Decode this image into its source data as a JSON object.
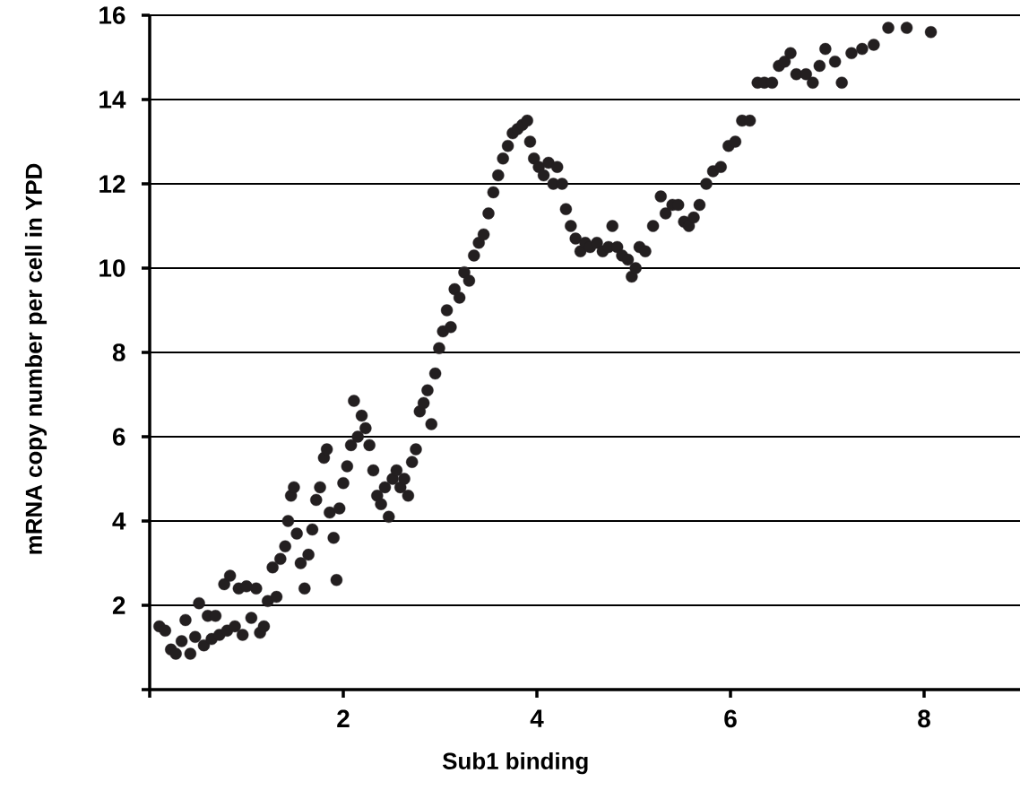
{
  "chart_data": {
    "type": "scatter",
    "xlabel": "Sub1 binding",
    "ylabel": "mRNA copy number per cell in YPD",
    "xlim": [
      0,
      9
    ],
    "ylim": [
      0,
      16
    ],
    "xticks": [
      {
        "value": 0,
        "label": null
      },
      2,
      4,
      6,
      8
    ],
    "yticks": [
      {
        "value": 0,
        "label": null
      },
      2,
      4,
      6,
      8,
      10,
      12,
      14,
      16
    ],
    "grid": "y",
    "series": [
      {
        "color": "#231f20",
        "x": [
          0.1,
          0.16,
          0.22,
          0.27,
          0.33,
          0.37,
          0.42,
          0.47,
          0.51,
          0.56,
          0.6,
          0.64,
          0.68,
          0.72,
          0.77,
          0.8,
          0.83,
          0.88,
          0.92,
          0.96,
          1.0,
          1.05,
          1.1,
          1.14,
          1.18,
          1.22,
          1.27,
          1.31,
          1.35,
          1.4,
          1.43,
          1.46,
          1.49,
          1.52,
          1.56,
          1.6,
          1.64,
          1.68,
          1.72,
          1.76,
          1.8,
          1.83,
          1.86,
          1.9,
          1.93,
          1.96,
          2.0,
          2.04,
          2.08,
          2.11,
          2.15,
          2.19,
          2.23,
          2.27,
          2.31,
          2.35,
          2.39,
          2.43,
          2.47,
          2.51,
          2.55,
          2.59,
          2.63,
          2.67,
          2.71,
          2.75,
          2.79,
          2.83,
          2.87,
          2.91,
          2.95,
          2.99,
          3.03,
          3.07,
          3.11,
          3.15,
          3.2,
          3.25,
          3.3,
          3.35,
          3.4,
          3.45,
          3.5,
          3.55,
          3.6,
          3.65,
          3.7,
          3.75,
          3.8,
          3.85,
          3.9,
          3.93,
          3.97,
          4.02,
          4.07,
          4.12,
          4.17,
          4.21,
          4.26,
          4.3,
          4.35,
          4.4,
          4.45,
          4.5,
          4.55,
          4.62,
          4.68,
          4.74,
          4.78,
          4.83,
          4.88,
          4.94,
          4.98,
          5.02,
          5.06,
          5.12,
          5.2,
          5.28,
          5.33,
          5.4,
          5.46,
          5.52,
          5.57,
          5.62,
          5.68,
          5.75,
          5.82,
          5.9,
          5.98,
          6.05,
          6.12,
          6.2,
          6.28,
          6.35,
          6.43,
          6.5,
          6.56,
          6.62,
          6.68,
          6.78,
          6.85,
          6.92,
          6.98,
          7.08,
          7.15,
          7.25,
          7.36,
          7.48,
          7.63,
          7.82,
          8.07
        ],
        "values": [
          1.5,
          1.4,
          0.95,
          0.85,
          1.15,
          1.65,
          0.85,
          1.25,
          2.05,
          1.05,
          1.75,
          1.2,
          1.75,
          1.3,
          2.5,
          1.4,
          2.7,
          1.5,
          2.4,
          1.3,
          2.45,
          1.7,
          2.4,
          1.35,
          1.5,
          2.1,
          2.9,
          2.2,
          3.1,
          3.4,
          4.0,
          4.6,
          4.8,
          3.7,
          3.0,
          2.4,
          3.2,
          3.8,
          4.5,
          4.8,
          5.5,
          5.7,
          4.2,
          3.6,
          2.6,
          4.3,
          4.9,
          5.3,
          5.8,
          6.85,
          6.0,
          6.5,
          6.2,
          5.8,
          5.2,
          4.6,
          4.4,
          4.8,
          4.1,
          5.0,
          5.2,
          4.8,
          5.0,
          4.6,
          5.4,
          5.7,
          6.6,
          6.8,
          7.1,
          6.3,
          7.5,
          8.1,
          8.5,
          9.0,
          8.6,
          9.5,
          9.3,
          9.9,
          9.7,
          10.3,
          10.6,
          10.8,
          11.3,
          11.8,
          12.2,
          12.6,
          12.9,
          13.2,
          13.3,
          13.4,
          13.5,
          13.0,
          12.6,
          12.4,
          12.2,
          12.5,
          12.0,
          12.4,
          12.0,
          11.4,
          11.0,
          10.7,
          10.4,
          10.6,
          10.5,
          10.6,
          10.4,
          10.5,
          11.0,
          10.5,
          10.3,
          10.2,
          9.8,
          10.0,
          10.5,
          10.4,
          11.0,
          11.7,
          11.3,
          11.5,
          11.5,
          11.1,
          11.0,
          11.2,
          11.5,
          12.0,
          12.3,
          12.4,
          12.9,
          13.0,
          13.5,
          13.5,
          14.4,
          14.4,
          14.4,
          14.8,
          14.9,
          15.1,
          14.6,
          14.6,
          14.4,
          14.8,
          15.2,
          14.9,
          14.4,
          15.1,
          15.2,
          15.3,
          15.7,
          15.7,
          15.6
        ]
      }
    ]
  }
}
